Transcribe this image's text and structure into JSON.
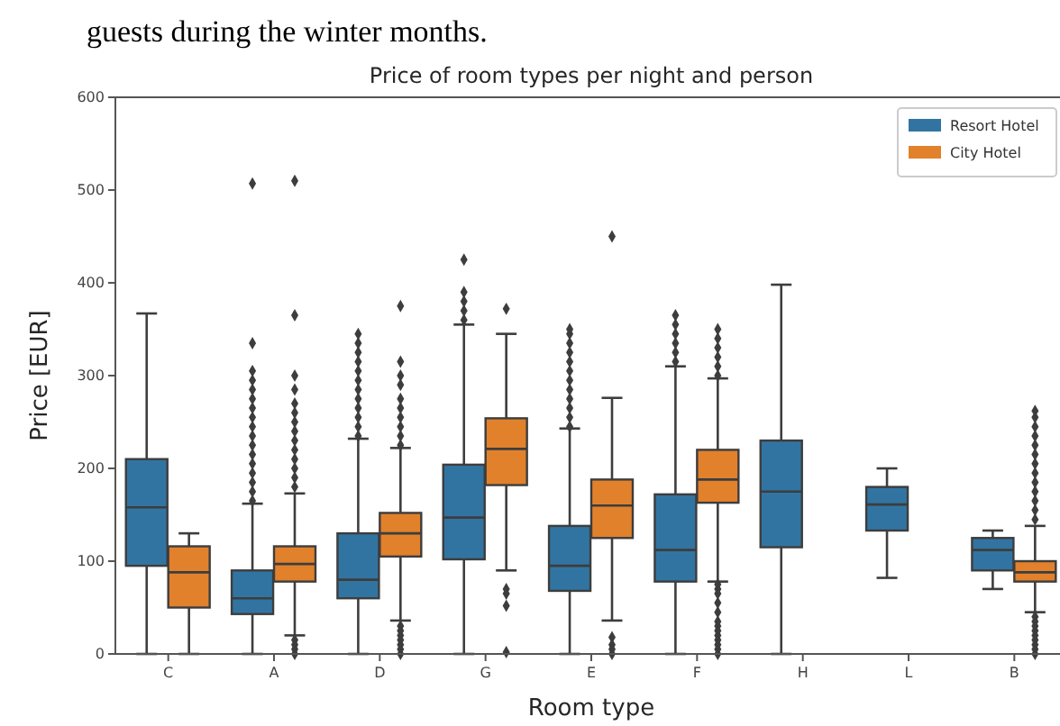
{
  "chart_data": {
    "type": "box",
    "title": "Price of room types per night and person",
    "xlabel": "Room type",
    "ylabel": "Price [EUR]",
    "annotations": [
      "guests during the winter months."
    ],
    "categories": [
      "C",
      "A",
      "D",
      "G",
      "E",
      "F",
      "H",
      "L",
      "B"
    ],
    "ylim": [
      0,
      600
    ],
    "yticks": [
      0,
      100,
      200,
      300,
      400,
      500,
      600
    ],
    "grid": false,
    "legend": "top right",
    "marker": "diamond",
    "series": [
      {
        "name": "Resort Hotel",
        "color": "#3274a1",
        "boxes": [
          {
            "low": 0,
            "q1": 95,
            "median": 158,
            "q3": 210,
            "high": 367
          },
          {
            "low": 0,
            "q1": 43,
            "median": 60,
            "q3": 90,
            "high": 162,
            "outliers": [
              165,
              175,
              185,
              195,
              205,
              215,
              225,
              235,
              245,
              255,
              265,
              275,
              285,
              295,
              305,
              335,
              507
            ]
          },
          {
            "low": 0,
            "q1": 60,
            "median": 80,
            "q3": 130,
            "high": 232,
            "outliers": [
              235,
              245,
              255,
              265,
              275,
              285,
              295,
              305,
              315,
              325,
              335,
              345
            ]
          },
          {
            "low": 0,
            "q1": 102,
            "median": 147,
            "q3": 204,
            "high": 355,
            "outliers": [
              360,
              370,
              380,
              390,
              425
            ]
          },
          {
            "low": 0,
            "q1": 68,
            "median": 95,
            "q3": 138,
            "high": 243,
            "outliers": [
              245,
              255,
              265,
              275,
              285,
              295,
              305,
              315,
              325,
              335,
              345,
              350
            ]
          },
          {
            "low": 0,
            "q1": 78,
            "median": 112,
            "q3": 172,
            "high": 310,
            "outliers": [
              315,
              325,
              335,
              345,
              355,
              365
            ]
          },
          {
            "low": 0,
            "q1": 115,
            "median": 175,
            "q3": 230,
            "high": 398
          },
          {
            "low": 82,
            "q1": 133,
            "median": 161,
            "q3": 180,
            "high": 200
          },
          {
            "low": 70,
            "q1": 90,
            "median": 112,
            "q3": 125,
            "high": 133
          }
        ]
      },
      {
        "name": "City Hotel",
        "color": "#e1812c",
        "boxes": [
          {
            "low": 0,
            "q1": 50,
            "median": 88,
            "q3": 116,
            "high": 130
          },
          {
            "low": 20,
            "q1": 78,
            "median": 97,
            "q3": 116,
            "high": 173,
            "outliers": [
              0,
              5,
              10,
              15,
              180,
              190,
              200,
              210,
              220,
              230,
              240,
              250,
              260,
              270,
              285,
              300,
              365,
              510
            ]
          },
          {
            "low": 36,
            "q1": 105,
            "median": 130,
            "q3": 152,
            "high": 222,
            "outliers": [
              0,
              5,
              10,
              15,
              20,
              25,
              30,
              225,
              235,
              245,
              255,
              265,
              275,
              290,
              300,
              315,
              375
            ]
          },
          {
            "low": 90,
            "q1": 182,
            "median": 221,
            "q3": 254,
            "high": 345,
            "outliers": [
              2,
              52,
              65,
              70,
              372
            ]
          },
          {
            "low": 36,
            "q1": 125,
            "median": 160,
            "q3": 188,
            "high": 276,
            "outliers": [
              0,
              5,
              10,
              18,
              450
            ]
          },
          {
            "low": 78,
            "q1": 163,
            "median": 188,
            "q3": 220,
            "high": 297,
            "outliers": [
              0,
              5,
              10,
              15,
              20,
              25,
              30,
              35,
              45,
              55,
              65,
              70,
              75,
              300,
              310,
              320,
              330,
              340,
              350
            ]
          },
          null,
          null,
          {
            "low": 45,
            "q1": 78,
            "median": 88,
            "q3": 100,
            "high": 138,
            "outliers": [
              0,
              5,
              10,
              15,
              20,
              25,
              30,
              35,
              40,
              145,
              155,
              165,
              175,
              185,
              195,
              205,
              215,
              225,
              235,
              245,
              255,
              262
            ]
          }
        ]
      }
    ]
  }
}
